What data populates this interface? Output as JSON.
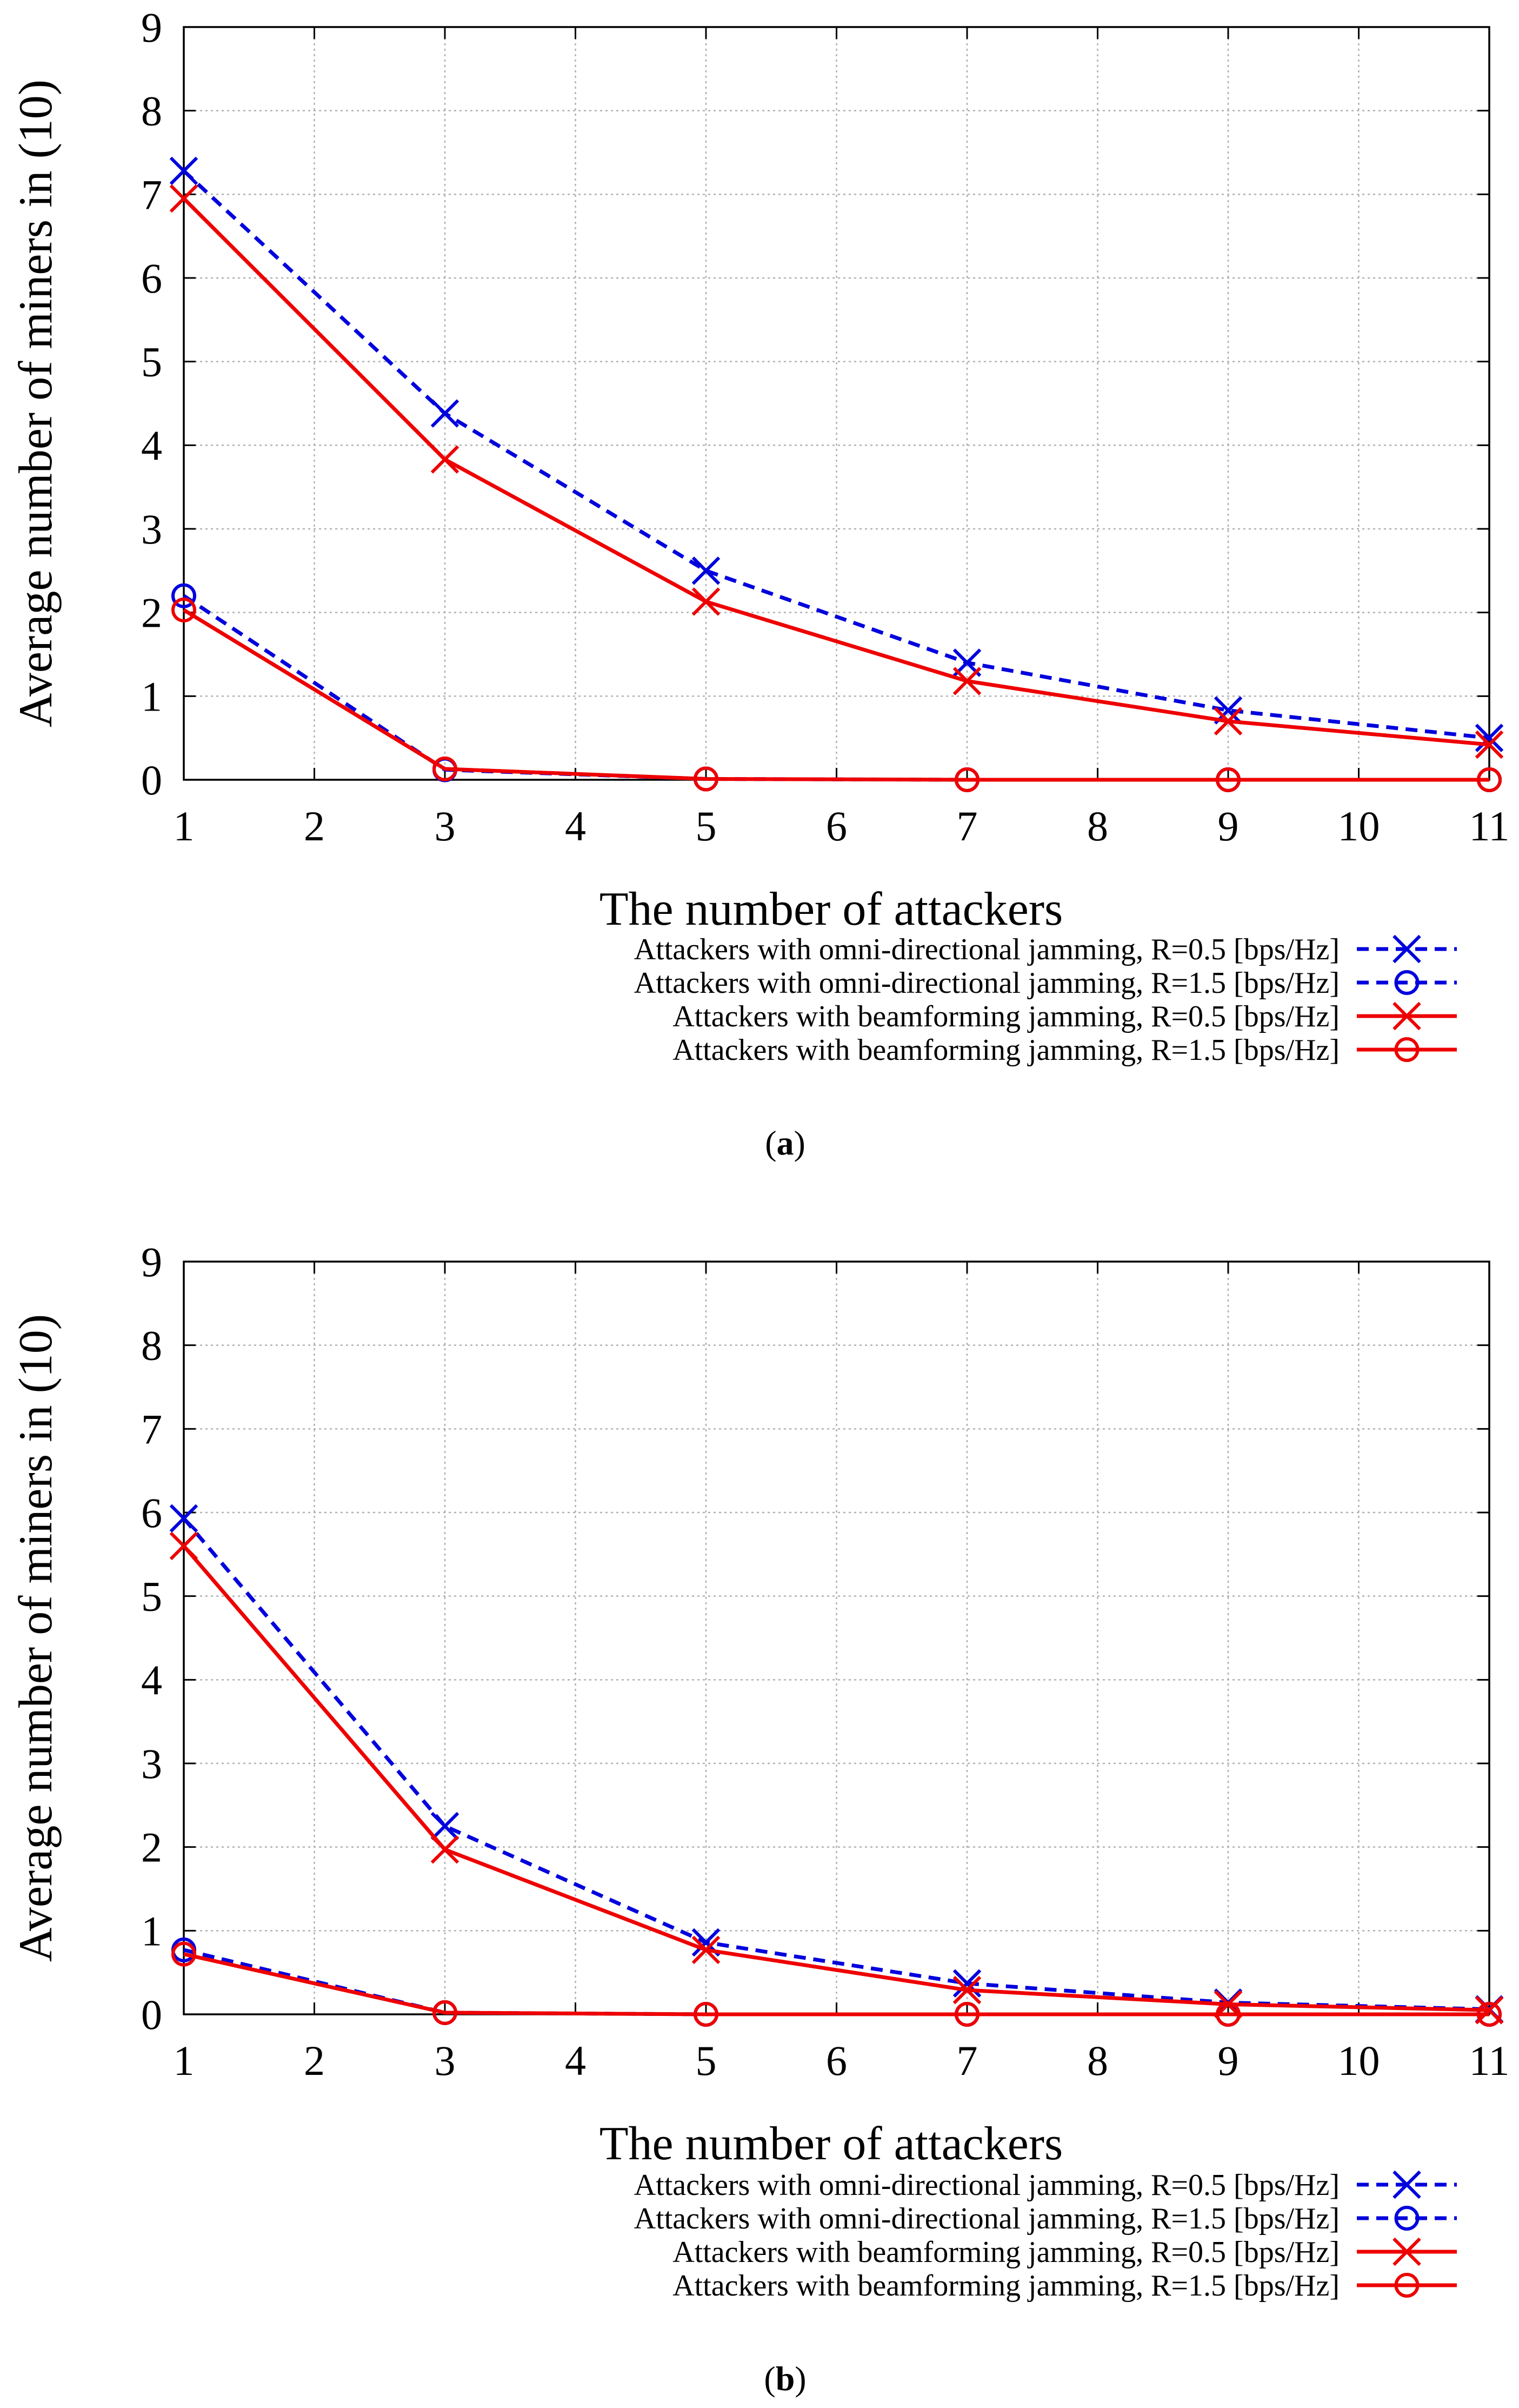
{
  "chart_data": [
    {
      "type": "line",
      "caption": "(a)",
      "caption_letter": "a",
      "xlabel": "The number of attackers",
      "ylabel": "Average number of miners in (10)",
      "xlim": [
        1,
        11
      ],
      "ylim": [
        0,
        9
      ],
      "xticks": [
        "1",
        "2",
        "3",
        "4",
        "5",
        "6",
        "7",
        "8",
        "9",
        "10",
        "11"
      ],
      "yticks": [
        "0",
        "1",
        "2",
        "3",
        "4",
        "5",
        "6",
        "7",
        "8",
        "9"
      ],
      "grid": true,
      "legend_position": "below-right",
      "x": [
        1,
        3,
        5,
        7,
        9,
        11
      ],
      "series": [
        {
          "name": "Attackers with omni-directional jamming, R=0.5 [bps/Hz]",
          "color": "#0000dd",
          "dash": true,
          "marker": "x",
          "values": [
            7.28,
            4.38,
            2.5,
            1.4,
            0.83,
            0.5
          ]
        },
        {
          "name": "Attackers with omni-directional jamming, R=1.5 [bps/Hz]",
          "color": "#0000dd",
          "dash": true,
          "marker": "o",
          "values": [
            2.2,
            0.12,
            0.01,
            0.0,
            0.0,
            0.0
          ]
        },
        {
          "name": "Attackers with beamforming jamming, R=0.5 [bps/Hz]",
          "color": "#ee0000",
          "dash": false,
          "marker": "x",
          "values": [
            6.95,
            3.83,
            2.13,
            1.18,
            0.7,
            0.42
          ]
        },
        {
          "name": "Attackers with beamforming jamming, R=1.5 [bps/Hz]",
          "color": "#ee0000",
          "dash": false,
          "marker": "o",
          "values": [
            2.03,
            0.13,
            0.01,
            0.0,
            0.0,
            0.0
          ]
        }
      ]
    },
    {
      "type": "line",
      "caption": "(b)",
      "caption_letter": "b",
      "xlabel": "The number of attackers",
      "ylabel": "Average number of miners in (10)",
      "xlim": [
        1,
        11
      ],
      "ylim": [
        0,
        9
      ],
      "xticks": [
        "1",
        "2",
        "3",
        "4",
        "5",
        "6",
        "7",
        "8",
        "9",
        "10",
        "11"
      ],
      "yticks": [
        "0",
        "1",
        "2",
        "3",
        "4",
        "5",
        "6",
        "7",
        "8",
        "9"
      ],
      "grid": true,
      "legend_position": "below-right",
      "x": [
        1,
        3,
        5,
        7,
        9,
        11
      ],
      "series": [
        {
          "name": "Attackers with omni-directional jamming, R=0.5 [bps/Hz]",
          "color": "#0000dd",
          "dash": true,
          "marker": "x",
          "values": [
            5.93,
            2.25,
            0.86,
            0.37,
            0.14,
            0.06
          ]
        },
        {
          "name": "Attackers with omni-directional jamming, R=1.5 [bps/Hz]",
          "color": "#0000dd",
          "dash": true,
          "marker": "o",
          "values": [
            0.77,
            0.02,
            0.0,
            0.0,
            0.0,
            0.0
          ]
        },
        {
          "name": "Attackers with beamforming jamming, R=0.5 [bps/Hz]",
          "color": "#ee0000",
          "dash": false,
          "marker": "x",
          "values": [
            5.6,
            1.97,
            0.77,
            0.29,
            0.12,
            0.05
          ]
        },
        {
          "name": "Attackers with beamforming jamming, R=1.5 [bps/Hz]",
          "color": "#ee0000",
          "dash": false,
          "marker": "o",
          "values": [
            0.72,
            0.02,
            0.0,
            0.0,
            0.0,
            0.0
          ]
        }
      ]
    }
  ]
}
